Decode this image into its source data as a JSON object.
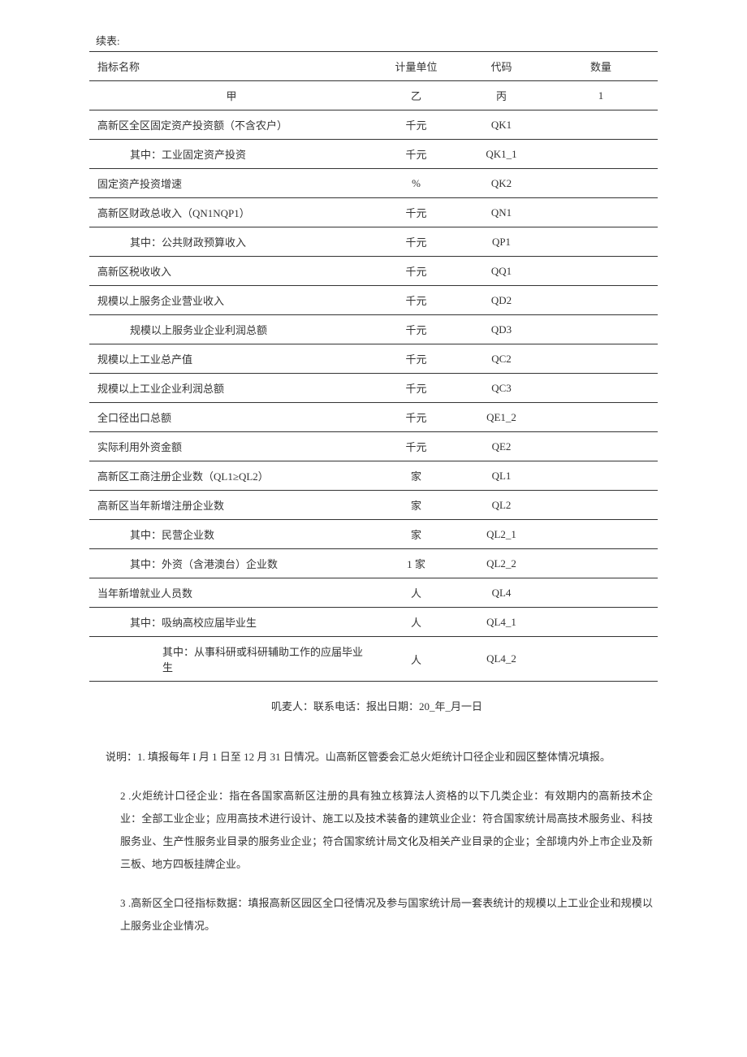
{
  "table_label": "续表:",
  "headers": {
    "name": "指标名称",
    "unit": "计量单位",
    "code": "代码",
    "qty": "数量"
  },
  "subheaders": {
    "name": "甲",
    "unit": "乙",
    "code": "丙",
    "qty": "1"
  },
  "rows": [
    {
      "name": "高新区全区固定资产投资额（不含农户）",
      "unit": "千元",
      "code": "QK1",
      "indent": 0
    },
    {
      "name": "其中：工业固定资产投资",
      "unit": "千元",
      "code": "QK1_1",
      "indent": 1
    },
    {
      "name": "固定资产投资增速",
      "unit": "%",
      "code": "QK2",
      "indent": 0
    },
    {
      "name": "高新区财政总收入（QN1NQP1）",
      "unit": "千元",
      "code": "QN1",
      "indent": 0
    },
    {
      "name": "其中：公共财政预算收入",
      "unit": "千元",
      "code": "QP1",
      "indent": 1
    },
    {
      "name": "高新区税收收入",
      "unit": "千元",
      "code": "QQ1",
      "indent": 0
    },
    {
      "name": "规模以上服务企业营业收入",
      "unit": "千元",
      "code": "QD2",
      "indent": 0
    },
    {
      "name": "规模以上服务业企业利润总额",
      "unit": "千元",
      "code": "QD3",
      "indent": 1
    },
    {
      "name": "规模以上工业总产值",
      "unit": "千元",
      "code": "QC2",
      "indent": 0
    },
    {
      "name": "规模以上工业企业利润总额",
      "unit": "千元",
      "code": "QC3",
      "indent": 0
    },
    {
      "name": "全口径出口总额",
      "unit": "千元",
      "code": "QE1_2",
      "indent": 0
    },
    {
      "name": "实际利用外资金额",
      "unit": "千元",
      "code": "QE2",
      "indent": 0
    },
    {
      "name": "高新区工商注册企业数（QL1≥QL2）",
      "unit": "家",
      "code": "QL1",
      "indent": 0
    },
    {
      "name": "高新区当年新增注册企业数",
      "unit": "家",
      "code": "QL2",
      "indent": 0
    },
    {
      "name": "其中：民营企业数",
      "unit": "家",
      "code": "QL2_1",
      "indent": 1
    },
    {
      "name": "其中：外资（含港澳台）企业数",
      "unit": "1 家",
      "code": "QL2_2",
      "indent": 1
    },
    {
      "name": "当年新增就业人员数",
      "unit": "人",
      "code": "QL4",
      "indent": 0
    },
    {
      "name": "其中：吸纳高校应届毕业生",
      "unit": "人",
      "code": "QL4_1",
      "indent": 1
    },
    {
      "name": "其中：从事科研或科研辅助工作的应届毕业生",
      "unit": "人",
      "code": "QL4_2",
      "indent": 2
    }
  ],
  "footer": "叽麦人：联系电话：报出日期：20_年_月一日",
  "notes": [
    "说明：1. 填报每年 I 月 1 日至 12 月 31 日情况。山高新区管委会汇总火炬统计口径企业和园区整体情况填报。",
    "2 .火炬统计口径企业：指在各国家高新区注册的具有独立核算法人资格的以下几类企业：有效期内的高新技术企业：全部工业企业；应用高技术进行设计、施工以及技术装备的建筑业企业：符合国家统计局高技术服务业、科技服务业、生产性服务业目录的服务业企业；符合国家统计局文化及相关产业目录的企业；全部境内外上市企业及新三板、地方四板挂牌企业。",
    "3 .高新区全口径指标数据：填报高新区园区全口径情况及参与国家统计局一套表统计的规模以上工业企业和规模以上服务业企业情况。"
  ]
}
